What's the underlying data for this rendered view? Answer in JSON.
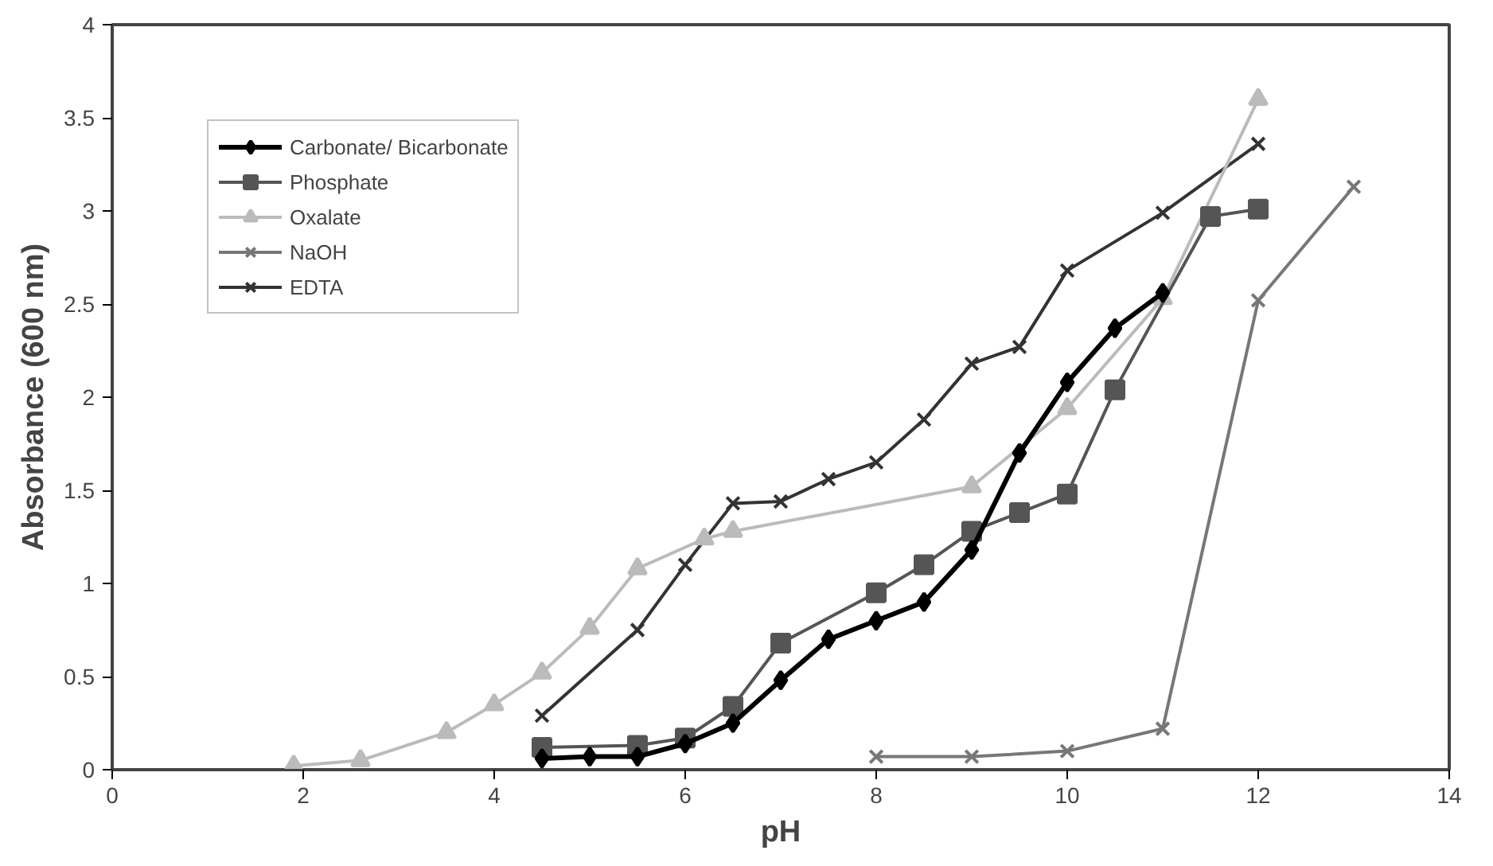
{
  "chart_data": {
    "type": "line",
    "xlabel": "pH",
    "ylabel": "Absorbance (600 nm)",
    "xlim": [
      0,
      14
    ],
    "ylim": [
      0,
      4
    ],
    "xticks": [
      0,
      2,
      4,
      6,
      8,
      10,
      12,
      14
    ],
    "yticks": [
      0,
      0.5,
      1,
      1.5,
      2,
      2.5,
      3,
      3.5,
      4
    ],
    "grid": false,
    "legend": "top left",
    "line_style": "solid",
    "series": [
      {
        "name": "Carbonate/ Bicarbonate",
        "color": "#000000",
        "marker": "diamond",
        "x": [
          4.5,
          5,
          5.5,
          6,
          6.5,
          7,
          7.5,
          8,
          8.5,
          9,
          9.5,
          10,
          10.5,
          11
        ],
        "values": [
          0.06,
          0.07,
          0.07,
          0.14,
          0.25,
          0.48,
          0.7,
          0.8,
          0.9,
          1.18,
          1.7,
          2.08,
          2.37,
          2.56
        ]
      },
      {
        "name": "Phosphate",
        "color": "#555555",
        "marker": "square",
        "x": [
          4.5,
          5.5,
          6,
          6.5,
          7,
          8,
          8.5,
          9,
          9.5,
          10,
          10.5,
          11.5,
          12
        ],
        "values": [
          0.12,
          0.13,
          0.17,
          0.34,
          0.68,
          0.95,
          1.1,
          1.28,
          1.38,
          1.48,
          2.04,
          2.97,
          3.01
        ]
      },
      {
        "name": "Oxalate",
        "color": "#bbbbbb",
        "marker": "triangle",
        "x": [
          1.9,
          2.6,
          3.5,
          4,
          4.5,
          5,
          5.5,
          6.2,
          6.5,
          9,
          10,
          11,
          12
        ],
        "values": [
          0.02,
          0.05,
          0.2,
          0.35,
          0.52,
          0.76,
          1.08,
          1.24,
          1.28,
          1.52,
          1.94,
          2.53,
          3.6
        ]
      },
      {
        "name": "NaOH",
        "color": "#777777",
        "marker": "cross",
        "x": [
          8,
          9,
          10,
          11,
          12,
          13
        ],
        "values": [
          0.07,
          0.07,
          0.1,
          0.22,
          2.52,
          3.13
        ]
      },
      {
        "name": "EDTA",
        "color": "#333333",
        "marker": "cross",
        "x": [
          4.5,
          5.5,
          6,
          6.5,
          7,
          7.5,
          8,
          8.5,
          9,
          9.5,
          10,
          11,
          12
        ],
        "values": [
          0.29,
          0.75,
          1.1,
          1.43,
          1.44,
          1.56,
          1.65,
          1.88,
          2.18,
          2.27,
          2.68,
          2.99,
          3.36
        ]
      }
    ]
  }
}
